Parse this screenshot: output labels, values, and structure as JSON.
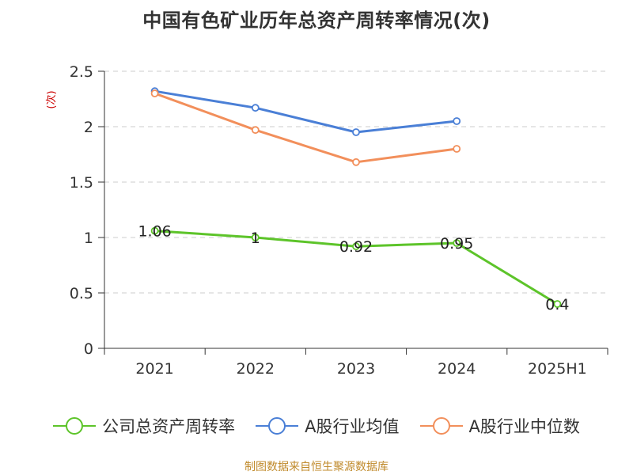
{
  "title": "中国有色矿业历年总资产周转率情况(次)",
  "source": "制图数据来自恒生聚源数据库",
  "chart_data": {
    "type": "line",
    "categories": [
      "2021",
      "2022",
      "2023",
      "2024",
      "2025H1"
    ],
    "ylabel": "(次)",
    "ylim": [
      0,
      2.5
    ],
    "yticks": [
      "0",
      "0.5",
      "1",
      "1.5",
      "2",
      "2.5"
    ],
    "grid": true,
    "legend_position": "bottom",
    "series": [
      {
        "name": "公司总资产周转率",
        "color": "#5dc42a",
        "values": [
          1.06,
          1.0,
          0.92,
          0.95,
          0.4
        ],
        "labels": [
          "1.06",
          "1",
          "0.92",
          "0.95",
          "0.4"
        ]
      },
      {
        "name": "A股行业均值",
        "color": "#4a7fd6",
        "values": [
          2.32,
          2.17,
          1.95,
          2.05,
          null
        ]
      },
      {
        "name": "A股行业中位数",
        "color": "#f28f5b",
        "values": [
          2.3,
          1.97,
          1.68,
          1.8,
          null
        ]
      }
    ]
  }
}
